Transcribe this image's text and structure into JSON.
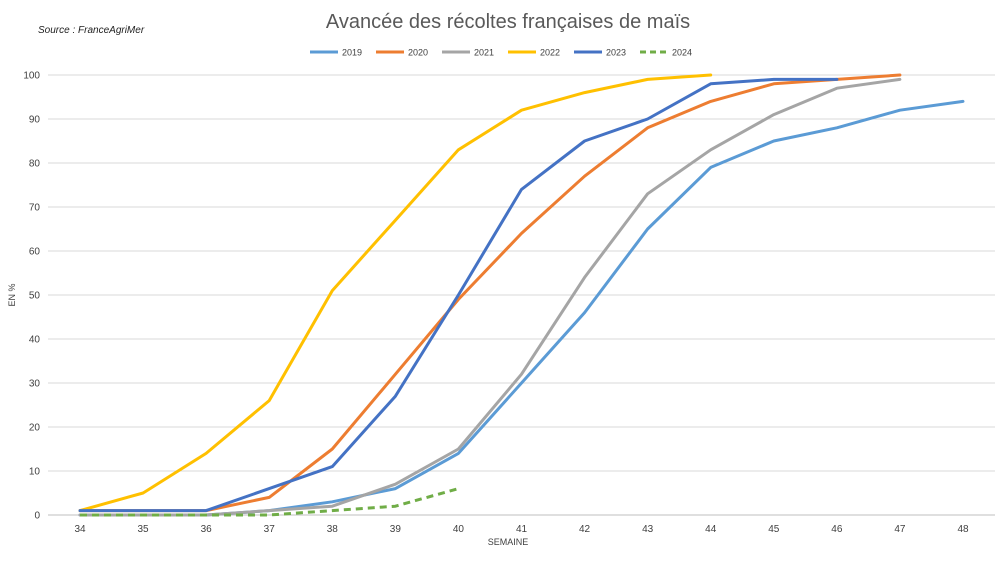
{
  "source": "Source : FranceAgriMer",
  "chart_data": {
    "type": "line",
    "title": "Avancée des récoltes françaises de maïs",
    "xlabel": "SEMAINE",
    "ylabel": "EN %",
    "x": [
      34,
      35,
      36,
      37,
      38,
      39,
      40,
      41,
      42,
      43,
      44,
      45,
      46,
      47,
      48
    ],
    "ylim": [
      0,
      100
    ],
    "yticks": [
      0,
      10,
      20,
      30,
      40,
      50,
      60,
      70,
      80,
      90,
      100
    ],
    "grid": true,
    "legend": "top-center",
    "series": [
      {
        "name": "2019",
        "color": "#5B9BD5",
        "dashed": false,
        "values": [
          0,
          0,
          0,
          1,
          3,
          6,
          14,
          30,
          46,
          65,
          79,
          85,
          88,
          92,
          94
        ]
      },
      {
        "name": "2020",
        "color": "#ED7D31",
        "dashed": false,
        "values": [
          1,
          1,
          1,
          4,
          15,
          32,
          49,
          64,
          77,
          88,
          94,
          98,
          99,
          100,
          null
        ]
      },
      {
        "name": "2021",
        "color": "#A5A5A5",
        "dashed": false,
        "values": [
          0,
          0,
          0,
          1,
          2,
          7,
          15,
          32,
          54,
          73,
          83,
          91,
          97,
          99,
          null
        ]
      },
      {
        "name": "2022",
        "color": "#FFC000",
        "dashed": false,
        "values": [
          1,
          5,
          14,
          26,
          51,
          67,
          83,
          92,
          96,
          99,
          100,
          null,
          null,
          null,
          null
        ]
      },
      {
        "name": "2023",
        "color": "#4472C4",
        "dashed": false,
        "values": [
          1,
          1,
          1,
          6,
          11,
          27,
          50,
          74,
          85,
          90,
          98,
          99,
          99,
          null,
          null
        ]
      },
      {
        "name": "2024",
        "color": "#70AD47",
        "dashed": true,
        "values": [
          0,
          0,
          0,
          0,
          1,
          2,
          6,
          null,
          null,
          null,
          null,
          null,
          null,
          null,
          null
        ]
      }
    ]
  }
}
